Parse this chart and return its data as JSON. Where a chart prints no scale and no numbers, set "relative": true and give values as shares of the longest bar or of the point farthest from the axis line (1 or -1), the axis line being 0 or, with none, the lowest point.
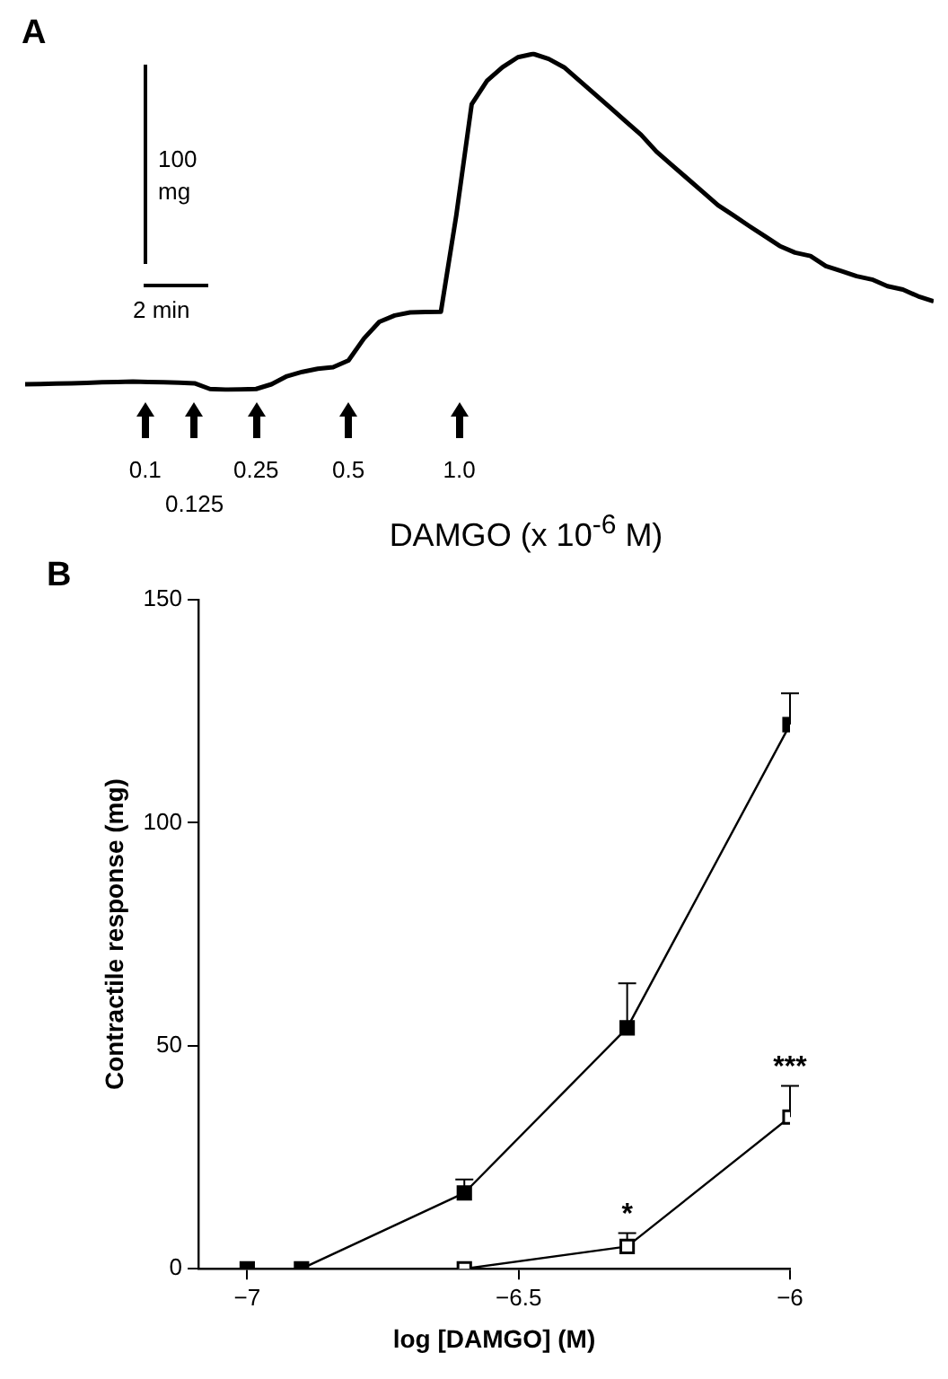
{
  "chart_data": [
    {
      "type": "line",
      "title": "A",
      "xlabel": "DAMGO (x 10$^{-6}$ M)",
      "relative": true,
      "marker": "none",
      "line_style": "solid",
      "legend": false,
      "grid": false,
      "categories": [
        null,
        null,
        null,
        null,
        null,
        null,
        null,
        null,
        null,
        null,
        null,
        null,
        null,
        null,
        null,
        null,
        null,
        null,
        null,
        null,
        null,
        null,
        null,
        null,
        null,
        null,
        null,
        null,
        null,
        null,
        null,
        null,
        null,
        null,
        null,
        null,
        null,
        null,
        null,
        null,
        null,
        null,
        null,
        null,
        null,
        null,
        null,
        null,
        null,
        null,
        null,
        null,
        null,
        null,
        null,
        null,
        null,
        null,
        null,
        null
      ],
      "series": [
        {
          "color": "#000000",
          "values": [
            0.016,
            0.017,
            0.018,
            0.019,
            0.02,
            0.022,
            0.023,
            0.024,
            0.023,
            0.022,
            0.021,
            0.019,
            0.002,
            0,
            0.001,
            0.002,
            0.016,
            0.04,
            0.053,
            0.062,
            0.067,
            0.087,
            0.152,
            0.202,
            0.221,
            0.23,
            0.231,
            0.232,
            0.519,
            0.85,
            0.92,
            0.96,
            0.99,
            1,
            0.985,
            0.96,
            0.92,
            0.88,
            0.84,
            0.799,
            0.759,
            0.709,
            0.669,
            0.629,
            0.589,
            0.549,
            0.519,
            0.488,
            0.458,
            0.428,
            0.408,
            0.398,
            0.368,
            0.353,
            0.338,
            0.328,
            0.308,
            0.298,
            0.278,
            0.263
          ]
        }
      ],
      "annotations": [
        "100 mg",
        "2 min",
        "0.1",
        "0.125",
        "0.25",
        "0.5",
        "1.0"
      ]
    },
    {
      "type": "line",
      "title": "B",
      "xlabel": "log [DAMGO] (M)",
      "ylabel": "Contractile response (mg)",
      "xlim": [
        -7.09,
        -6
      ],
      "xticks": [
        {
          "value": -7,
          "label": "−7"
        },
        {
          "value": -6.5,
          "label": "−6.5"
        },
        {
          "value": -6,
          "label": "−6"
        }
      ],
      "ylim": [
        0,
        150
      ],
      "yticks": [
        0,
        50,
        100,
        150
      ],
      "marker": "square",
      "line_style": "solid",
      "legend": false,
      "grid": false,
      "series": [
        {
          "color": "#000000",
          "x": [
            -7,
            -6.9,
            -6.6,
            -6.3,
            -6
          ],
          "values": [
            0,
            0,
            17,
            54,
            122
          ],
          "errors": [
            null,
            null,
            [
              17,
              20
            ],
            [
              54,
              64
            ],
            [
              122,
              129
            ]
          ]
        },
        {
          "color": "#000000",
          "x": [
            -6.6,
            -6.3,
            -6
          ],
          "values": [
            0,
            5,
            34
          ],
          "errors": [
            null,
            [
              5,
              8
            ],
            [
              34,
              41
            ]
          ]
        }
      ],
      "annotations": [
        {
          "text": "*",
          "x": -6.3,
          "y": 8
        },
        {
          "text": "***",
          "x": -6,
          "y": 41
        }
      ]
    }
  ]
}
